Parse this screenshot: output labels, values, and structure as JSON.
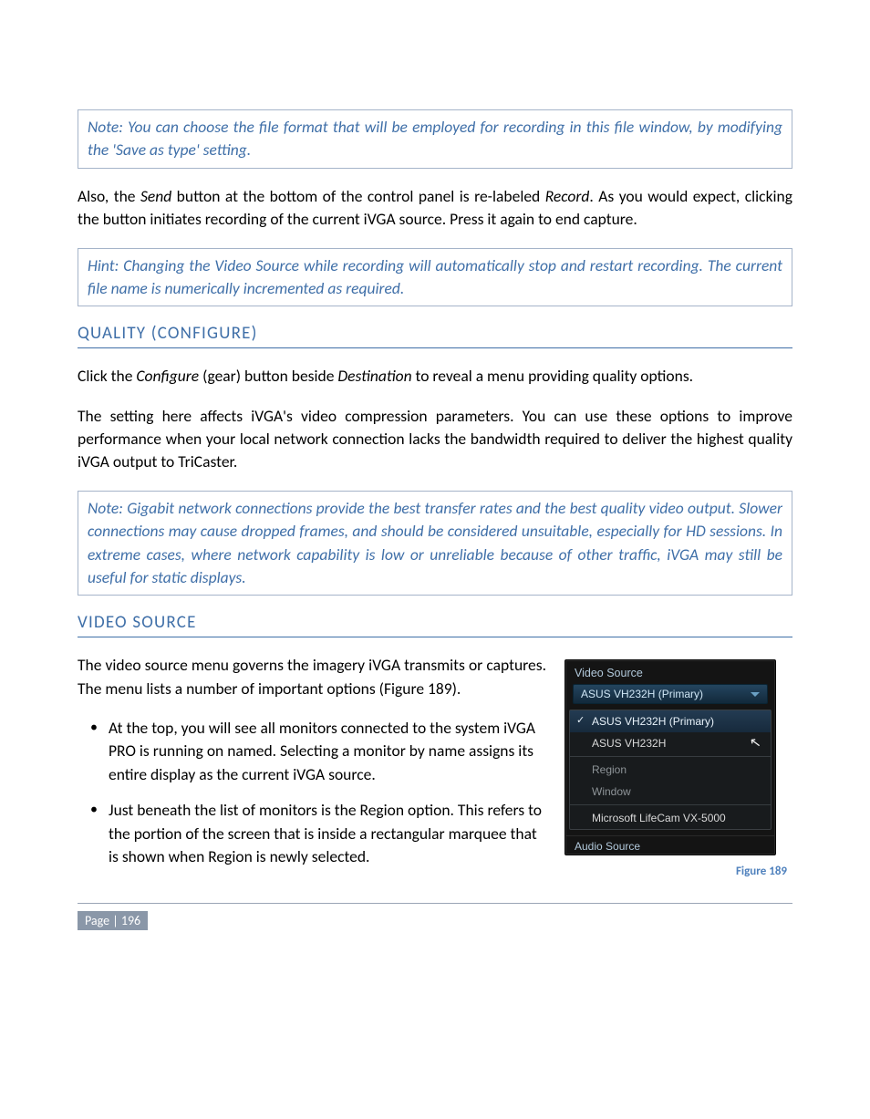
{
  "note1": "Note: You can choose the file format that will be employed for recording in this file window, by modifying the 'Save as type' setting.",
  "para1_a": "Also, the ",
  "para1_send": "Send",
  "para1_b": " button at the bottom of the control panel is re-labeled ",
  "para1_record": "Record",
  "para1_c": ".  As you would expect, clicking the button initiates recording of the current iVGA source.  Press it again to end capture.",
  "hint": "Hint: Changing the Video Source while recording will automatically stop and restart recording. The current file name is numerically incremented as required.",
  "heading_quality": "QUALITY (CONFIGURE)",
  "para2_a": "Click the ",
  "para2_configure": "Configure",
  "para2_b": " (gear) button beside ",
  "para2_dest": "Destination",
  "para2_c": " to reveal a menu providing quality options.",
  "para3": "The setting here affects iVGA's video compression parameters.  You can use these options to improve performance when your local network connection lacks the bandwidth required to deliver the highest quality iVGA output to TriCaster.",
  "note2": "Note: Gigabit network connections provide the best transfer rates and the best quality video output. Slower connections may cause dropped frames, and should be considered unsuitable, especially for HD sessions. In extreme cases, where network capability is low or unreliable because of other traffic, iVGA may still be useful for static displays.",
  "heading_video": "VIDEO SOURCE",
  "para4": "The video source menu governs the imagery iVGA transmits or captures.  The menu lists a number of important options (Figure 189).",
  "bullet1": "At the top, you will see all monitors connected to the system iVGA PRO is running on named.  Selecting a monitor by name assigns its entire display as the current iVGA source.",
  "bullet2_a": "Just beneath the list of monitors is the ",
  "bullet2_region": "Region",
  "bullet2_b": " option.  This refers to the portion of the screen that is inside a rectangular marquee that is shown when Region is newly selected.",
  "panel": {
    "title": "Video Source",
    "selected": "ASUS VH232H (Primary)",
    "item_sel": "ASUS VH232H (Primary)",
    "item_asus": "ASUS VH232H",
    "item_region": "Region",
    "item_window": "Window",
    "item_cam": "Microsoft LifeCam VX-5000",
    "footer": "Audio Source"
  },
  "figure_caption": "Figure 189",
  "page_label": "Page | 196"
}
